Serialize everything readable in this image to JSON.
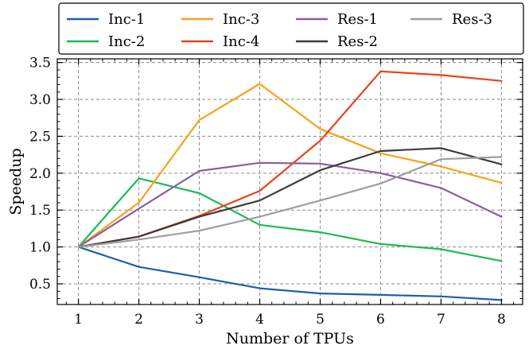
{
  "chart_data": {
    "type": "line",
    "title": "",
    "xlabel": "Number of TPUs",
    "ylabel": "Speedup",
    "x": [
      1,
      2,
      3,
      4,
      5,
      6,
      7,
      8
    ],
    "xlim": [
      0.65,
      8.35
    ],
    "ylim": [
      0.22,
      3.55
    ],
    "xticks": [
      1,
      2,
      3,
      4,
      5,
      6,
      7,
      8
    ],
    "xtick_labels": [
      "1",
      "2",
      "3",
      "4",
      "5",
      "6",
      "7",
      "8"
    ],
    "yticks": [
      0.5,
      1.0,
      1.5,
      2.0,
      2.5,
      3.0,
      3.5
    ],
    "ytick_labels": [
      "0.5",
      "1.0",
      "1.5",
      "2.0",
      "2.5",
      "3.0",
      "3.5"
    ],
    "grid": true,
    "legend_position": "top",
    "legend_columns": 4,
    "series": [
      {
        "name": "Inc-1",
        "color": "#1f5fa8",
        "values": [
          1.0,
          0.73,
          0.59,
          0.44,
          0.37,
          0.35,
          0.33,
          0.28
        ]
      },
      {
        "name": "Inc-2",
        "color": "#1db954",
        "values": [
          1.0,
          1.93,
          1.73,
          1.3,
          1.2,
          1.04,
          0.97,
          0.81
        ]
      },
      {
        "name": "Inc-3",
        "color": "#f5a31a",
        "values": [
          1.0,
          1.6,
          2.72,
          3.21,
          2.6,
          2.27,
          2.09,
          1.87
        ]
      },
      {
        "name": "Inc-4",
        "color": "#e8431c",
        "values": [
          1.0,
          1.14,
          1.42,
          1.76,
          2.44,
          3.38,
          3.33,
          3.25
        ]
      },
      {
        "name": "Res-1",
        "color": "#8b5e9c",
        "values": [
          1.0,
          1.52,
          2.03,
          2.14,
          2.13,
          2.0,
          1.8,
          1.41
        ]
      },
      {
        "name": "Res-2",
        "color": "#3c3c3c",
        "values": [
          1.0,
          1.14,
          1.41,
          1.63,
          2.04,
          2.3,
          2.34,
          2.12
        ]
      },
      {
        "name": "Res-3",
        "color": "#9e9e9e",
        "values": [
          1.0,
          1.1,
          1.22,
          1.41,
          1.63,
          1.86,
          2.19,
          2.22
        ]
      }
    ]
  }
}
